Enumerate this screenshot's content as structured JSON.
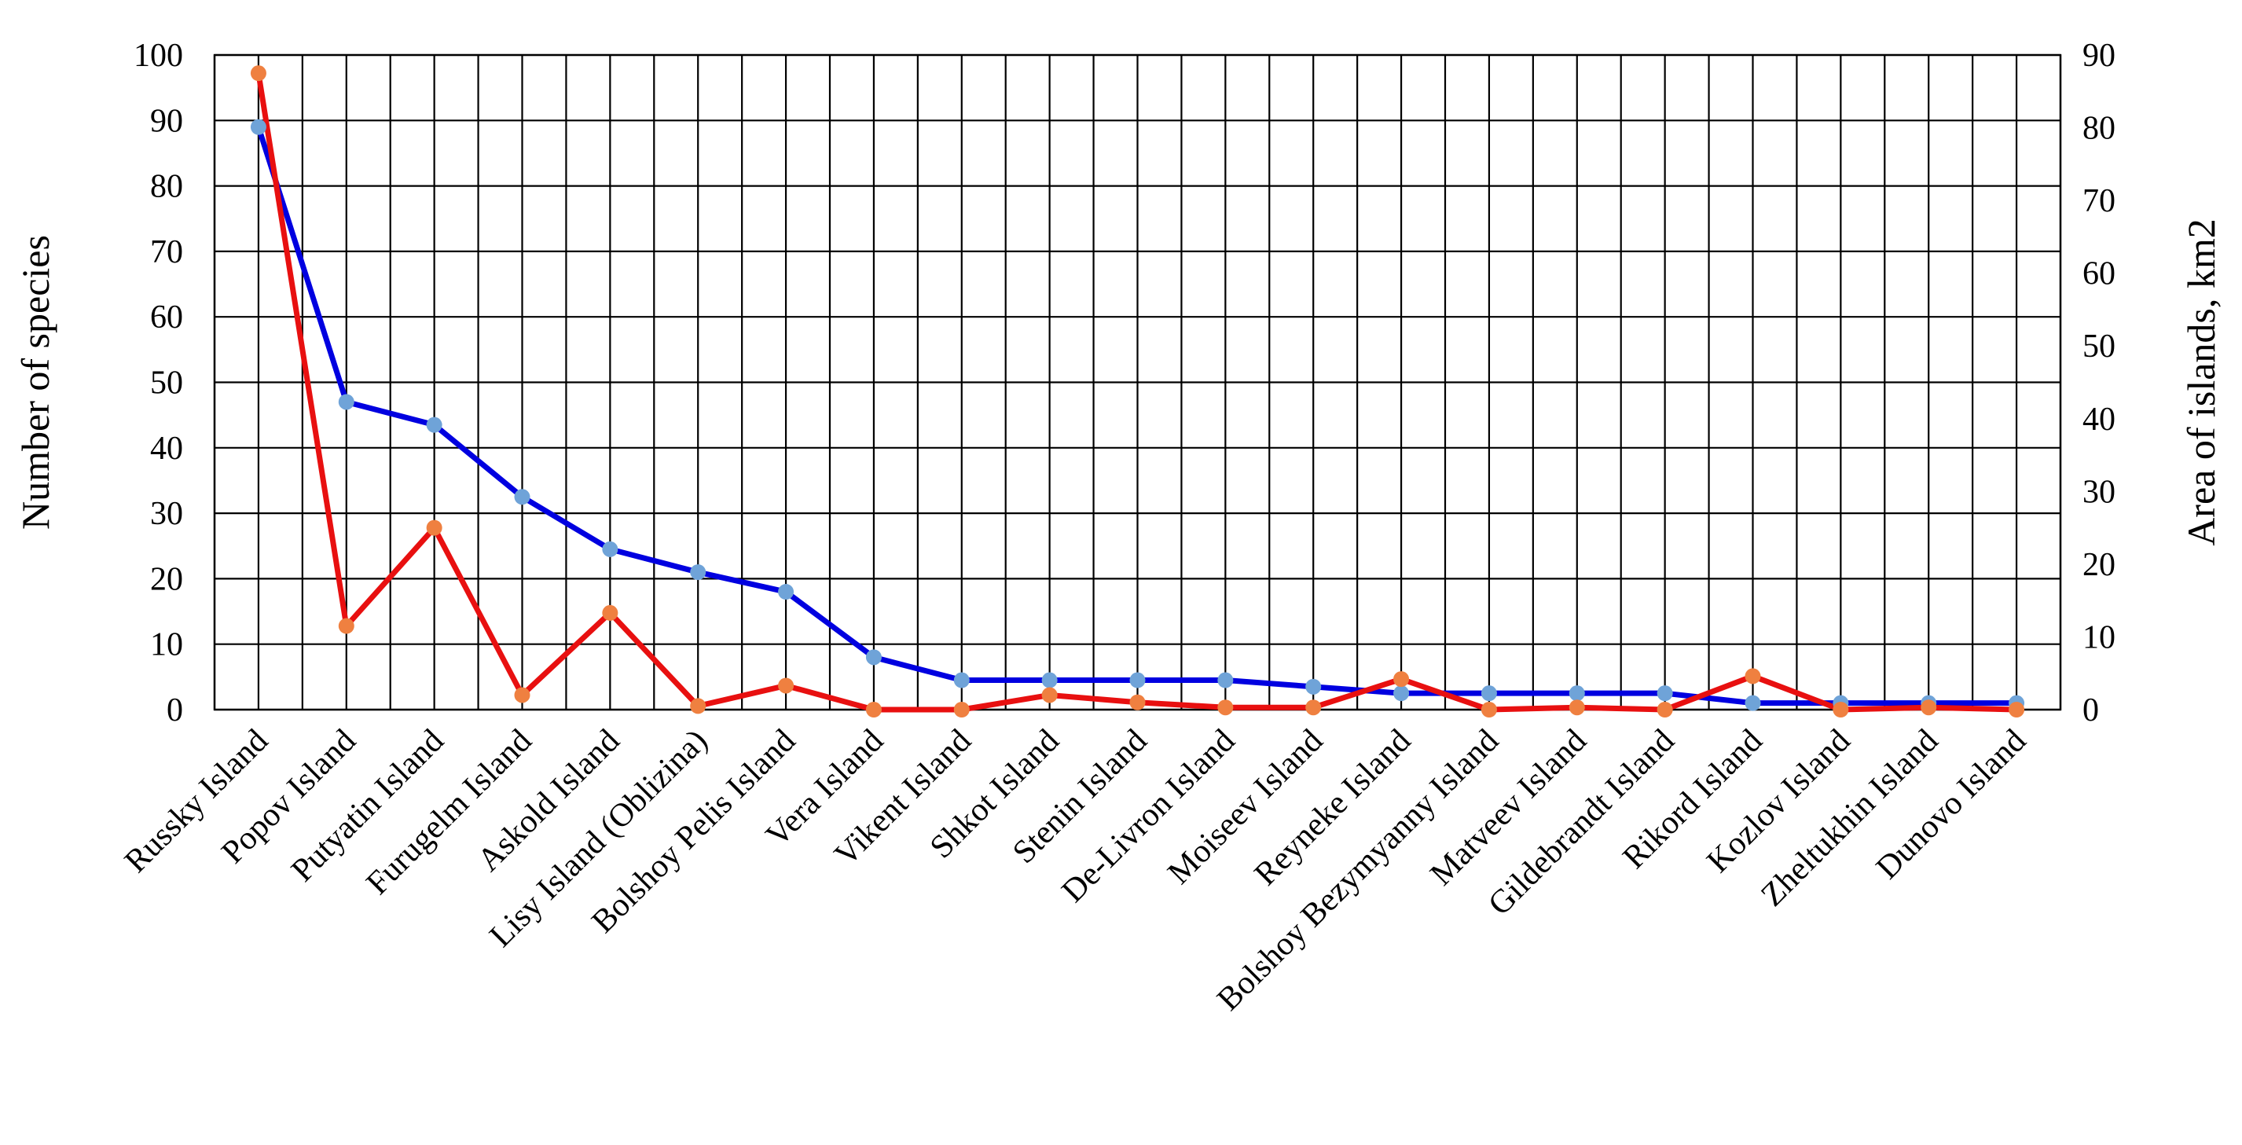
{
  "chart_data": {
    "type": "line",
    "title": "",
    "ylabel_left": "Number of species",
    "ylabel_right": "Area of islands, km2",
    "ylim_left": [
      0,
      100
    ],
    "ylim_right": [
      0,
      90
    ],
    "yticks_left": [
      0,
      10,
      20,
      30,
      40,
      50,
      60,
      70,
      80,
      90,
      100
    ],
    "yticks_right": [
      0,
      10,
      20,
      30,
      40,
      50,
      60,
      70,
      80,
      90
    ],
    "grid": true,
    "legend": "none",
    "categories": [
      "Russky Island",
      "Popov Island",
      "Putyatin Island",
      "Furugelm Island",
      "Askold Island",
      "Lisy Island (Oblizina)",
      "Bolshoy Pelis Island",
      "Vera Island",
      "Vikent Island",
      "Shkot Island",
      "Stenin Island",
      "De-Livron Island",
      "Moiseev Island",
      "Reyneke Island",
      "Bolshoy Bezymyanny  Island",
      "Matveev Island",
      "Gildebrandt Island",
      "Rikord Island",
      "Kozlov Island",
      "Zheltukhin Island",
      "Dunovo Island"
    ],
    "series": [
      {
        "axis": "left",
        "color": "#0000e0",
        "marker_color": "#6fa3d8",
        "values": [
          89,
          47,
          43.5,
          32.5,
          24.5,
          21,
          18,
          8,
          4.5,
          4.5,
          4.5,
          4.5,
          3.5,
          2.5,
          2.5,
          2.5,
          2.5,
          1,
          1,
          1,
          1
        ]
      },
      {
        "axis": "right",
        "color": "#e81010",
        "marker_color": "#ef8040",
        "values": [
          87.5,
          11.5,
          25,
          2,
          13.3,
          0.5,
          3.3,
          0,
          0,
          2,
          1,
          0.3,
          0.3,
          4.2,
          0,
          0.3,
          0,
          4.6,
          0,
          0.3,
          0
        ]
      }
    ]
  }
}
